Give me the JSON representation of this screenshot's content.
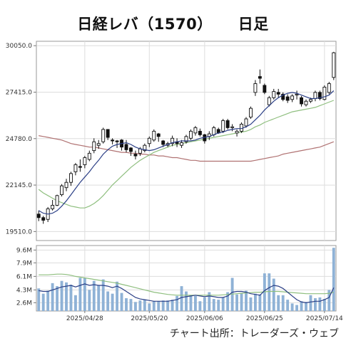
{
  "title": {
    "name": "日経レバ（1570）",
    "period": "日足"
  },
  "credit": "チャート出所：トレーダーズ・ウェブ",
  "chart_data": [
    {
      "type": "candlestick",
      "panel": "price",
      "ylim": [
        19000,
        30300
      ],
      "y_ticks": [
        {
          "v": 30050,
          "label": "30050.0"
        },
        {
          "v": 27415,
          "label": "27415.0"
        },
        {
          "v": 24780,
          "label": "24780.0"
        },
        {
          "v": 22145,
          "label": "22145.0"
        },
        {
          "v": 19510,
          "label": "19510.0"
        }
      ],
      "x_labels": [
        {
          "i": 10,
          "label": "2025/04/28"
        },
        {
          "i": 24,
          "label": "2025/05/20"
        },
        {
          "i": 36,
          "label": "2025/06/06"
        },
        {
          "i": 49,
          "label": "2025/06/25"
        },
        {
          "i": 62,
          "label": "2025/07/14"
        }
      ],
      "grid": true,
      "colors": {
        "up": "#ffffff",
        "down": "#111111",
        "ma_short": "#2b3f86",
        "ma_mid": "#8fbf7f",
        "ma_long": "#b07272"
      },
      "candles": [
        [
          20500,
          20700,
          20100,
          20300
        ],
        [
          20300,
          20400,
          19950,
          20150
        ],
        [
          20200,
          20900,
          20050,
          20800
        ],
        [
          20800,
          21300,
          20700,
          21000
        ],
        [
          21000,
          21600,
          20950,
          21550
        ],
        [
          21600,
          22200,
          21500,
          22100
        ],
        [
          22000,
          22500,
          21800,
          22300
        ],
        [
          22300,
          22900,
          22100,
          22800
        ],
        [
          22900,
          23400,
          22700,
          23300
        ],
        [
          23200,
          23600,
          22900,
          23150
        ],
        [
          23300,
          23800,
          23100,
          23700
        ],
        [
          23600,
          24100,
          23500,
          23950
        ],
        [
          24100,
          24800,
          23950,
          24600
        ],
        [
          24400,
          24700,
          24200,
          24500
        ],
        [
          24600,
          25400,
          24500,
          25300
        ],
        [
          25300,
          25300,
          24700,
          24850
        ],
        [
          24700,
          24800,
          24450,
          24650
        ],
        [
          24650,
          24700,
          24250,
          24600
        ],
        [
          24700,
          24750,
          24100,
          24300
        ],
        [
          24450,
          24700,
          24000,
          24150
        ],
        [
          24250,
          24300,
          23800,
          24050
        ],
        [
          23900,
          24100,
          23600,
          23800
        ],
        [
          23950,
          24300,
          23800,
          24200
        ],
        [
          24100,
          24500,
          24000,
          24400
        ],
        [
          24500,
          24900,
          24300,
          24800
        ],
        [
          24700,
          25300,
          24600,
          25200
        ],
        [
          25050,
          25100,
          24600,
          24900
        ],
        [
          24650,
          24700,
          24300,
          24450
        ],
        [
          24400,
          24600,
          24300,
          24500
        ],
        [
          24500,
          24950,
          24350,
          24800
        ],
        [
          24600,
          24800,
          24300,
          24500
        ],
        [
          24400,
          24700,
          24250,
          24550
        ],
        [
          24600,
          25000,
          24500,
          24900
        ],
        [
          24800,
          25300,
          24700,
          25200
        ],
        [
          25100,
          25500,
          24950,
          25400
        ],
        [
          25200,
          25350,
          24900,
          25000
        ],
        [
          25000,
          25050,
          24500,
          24650
        ],
        [
          24900,
          25200,
          24700,
          25050
        ],
        [
          25000,
          25500,
          24900,
          25400
        ],
        [
          25300,
          25400,
          25050,
          25100
        ],
        [
          25200,
          25900,
          25100,
          25800
        ],
        [
          25800,
          25900,
          25300,
          25400
        ],
        [
          25400,
          25600,
          25200,
          25450
        ],
        [
          25100,
          25300,
          24900,
          25200
        ],
        [
          25200,
          25700,
          25100,
          25600
        ],
        [
          25500,
          26000,
          25400,
          25900
        ],
        [
          26000,
          26600,
          25900,
          26500
        ],
        [
          27400,
          28100,
          27200,
          27900
        ],
        [
          28300,
          28700,
          27900,
          28200
        ],
        [
          27800,
          27900,
          27300,
          27400
        ],
        [
          26700,
          27200,
          26600,
          27100
        ],
        [
          27100,
          27600,
          27000,
          27450
        ],
        [
          27400,
          27600,
          27100,
          27300
        ],
        [
          27300,
          27400,
          26900,
          27000
        ],
        [
          27150,
          27300,
          26800,
          26950
        ],
        [
          27000,
          27300,
          26850,
          27200
        ],
        [
          27250,
          27500,
          27000,
          27300
        ],
        [
          27100,
          27200,
          26600,
          26750
        ],
        [
          26700,
          27000,
          26600,
          26900
        ],
        [
          26900,
          27100,
          26800,
          27000
        ],
        [
          27050,
          27500,
          26900,
          27400
        ],
        [
          27400,
          27500,
          26950,
          27050
        ],
        [
          27000,
          27800,
          26950,
          27700
        ],
        [
          27400,
          28000,
          27300,
          27900
        ],
        [
          28250,
          29700,
          28100,
          29650
        ]
      ],
      "ma_short": [
        20700,
        20550,
        20500,
        20550,
        20700,
        20950,
        21250,
        21600,
        21950,
        22300,
        22600,
        22900,
        23250,
        23550,
        23900,
        24150,
        24350,
        24450,
        24500,
        24550,
        24450,
        24300,
        24200,
        24150,
        24100,
        24150,
        24250,
        24350,
        24450,
        24550,
        24600,
        24650,
        24650,
        24650,
        24700,
        24800,
        24850,
        24900,
        25000,
        25100,
        25150,
        25250,
        25300,
        25350,
        25350,
        25450,
        25600,
        25850,
        26100,
        26400,
        26650,
        26900,
        27100,
        27250,
        27350,
        27400,
        27350,
        27250,
        27150,
        27050,
        27050,
        27100,
        27150,
        27250,
        27500
      ],
      "ma_mid": [
        21900,
        21700,
        21550,
        21400,
        21250,
        21150,
        21050,
        20950,
        20900,
        20850,
        20850,
        20950,
        21100,
        21300,
        21550,
        21850,
        22150,
        22400,
        22650,
        22900,
        23150,
        23350,
        23550,
        23700,
        23850,
        24000,
        24100,
        24200,
        24300,
        24400,
        24450,
        24500,
        24550,
        24600,
        24650,
        24700,
        24750,
        24800,
        24850,
        24900,
        24950,
        25000,
        25050,
        25100,
        25150,
        25200,
        25300,
        25450,
        25550,
        25700,
        25800,
        25900,
        26000,
        26100,
        26200,
        26300,
        26350,
        26400,
        26450,
        26500,
        26550,
        26650,
        26750,
        26850,
        26950
      ],
      "ma_long": [
        24950,
        24900,
        24850,
        24800,
        24750,
        24700,
        24600,
        24500,
        24450,
        24400,
        24350,
        24300,
        24300,
        24250,
        24200,
        24150,
        24100,
        24050,
        24000,
        24000,
        23950,
        23950,
        23900,
        23900,
        23850,
        23850,
        23800,
        23800,
        23750,
        23700,
        23700,
        23650,
        23600,
        23550,
        23550,
        23500,
        23500,
        23500,
        23500,
        23500,
        23500,
        23500,
        23500,
        23500,
        23500,
        23500,
        23500,
        23550,
        23600,
        23650,
        23700,
        23750,
        23800,
        23900,
        23950,
        24000,
        24050,
        24100,
        24150,
        24200,
        24250,
        24300,
        24400,
        24500,
        24600
      ]
    },
    {
      "type": "bar",
      "panel": "volume",
      "ylim": [
        1500000,
        10200000
      ],
      "y_ticks": [
        {
          "v": 9600000,
          "label": "9.6M"
        },
        {
          "v": 7900000,
          "label": "7.9M"
        },
        {
          "v": 6100000,
          "label": "6.1M"
        },
        {
          "v": 4300000,
          "label": "4.3M"
        },
        {
          "v": 2600000,
          "label": "2.6M"
        }
      ],
      "colors": {
        "bar": "#8fb2d6",
        "ma_short": "#2b3f86",
        "ma_long": "#8fbf7f"
      },
      "values": [
        4500000,
        3800000,
        4200000,
        5200000,
        4800000,
        5500000,
        5300000,
        5000000,
        3600000,
        5900000,
        5900000,
        4300000,
        5500000,
        4900000,
        5700000,
        4100000,
        3800000,
        5400000,
        3900000,
        3200000,
        3100000,
        2700000,
        2900000,
        3000000,
        2500000,
        2800000,
        2800000,
        2900000,
        2900000,
        3000000,
        3500000,
        4800000,
        4100000,
        3600000,
        3500000,
        2800000,
        3300000,
        4000000,
        3100000,
        3000000,
        3300000,
        4000000,
        5900000,
        3700000,
        3900000,
        4200000,
        3300000,
        3800000,
        3700000,
        6500000,
        6500000,
        5800000,
        3600000,
        3600000,
        3000000,
        2500000,
        2300000,
        2800000,
        2700000,
        3600000,
        3200000,
        3300000,
        3100000,
        4300000,
        9900000
      ],
      "ma_short": [
        4200000,
        4100000,
        4100000,
        4300000,
        4500000,
        4700000,
        4800000,
        4900000,
        4700000,
        4900000,
        5100000,
        4900000,
        5000000,
        4900000,
        4900000,
        4800000,
        4600000,
        4800000,
        4500000,
        4100000,
        3700000,
        3300000,
        3100000,
        3000000,
        2900000,
        2800000,
        2800000,
        2800000,
        2800000,
        2900000,
        3000000,
        3300000,
        3400000,
        3500000,
        3600000,
        3500000,
        3400000,
        3500000,
        3400000,
        3300000,
        3300000,
        3500000,
        4000000,
        4100000,
        4100000,
        4000000,
        3800000,
        3700000,
        3600000,
        4200000,
        4600000,
        4900000,
        4800000,
        4500000,
        4000000,
        3500000,
        3000000,
        2700000,
        2600000,
        2700000,
        2800000,
        2800000,
        3000000,
        3300000,
        4600000
      ],
      "ma_long": [
        6300000,
        6300000,
        6300000,
        6350000,
        6400000,
        6400000,
        6350000,
        6250000,
        6100000,
        6000000,
        5900000,
        5800000,
        5700000,
        5600000,
        5500000,
        5400000,
        5300000,
        5200000,
        5050000,
        4900000,
        4750000,
        4600000,
        4450000,
        4300000,
        4150000,
        4000000,
        3900000,
        3800000,
        3700000,
        3650000,
        3600000,
        3600000,
        3600000,
        3600000,
        3600000,
        3600000,
        3600000,
        3600000,
        3600000,
        3600000,
        3650000,
        3700000,
        3750000,
        3800000,
        3850000,
        3900000,
        3950000,
        4000000,
        4000000,
        4050000,
        4100000,
        4100000,
        4100000,
        4050000,
        4000000,
        3950000,
        3900000,
        3850000,
        3800000,
        3800000,
        3800000,
        3800000,
        3800000,
        3850000,
        4000000
      ]
    }
  ]
}
